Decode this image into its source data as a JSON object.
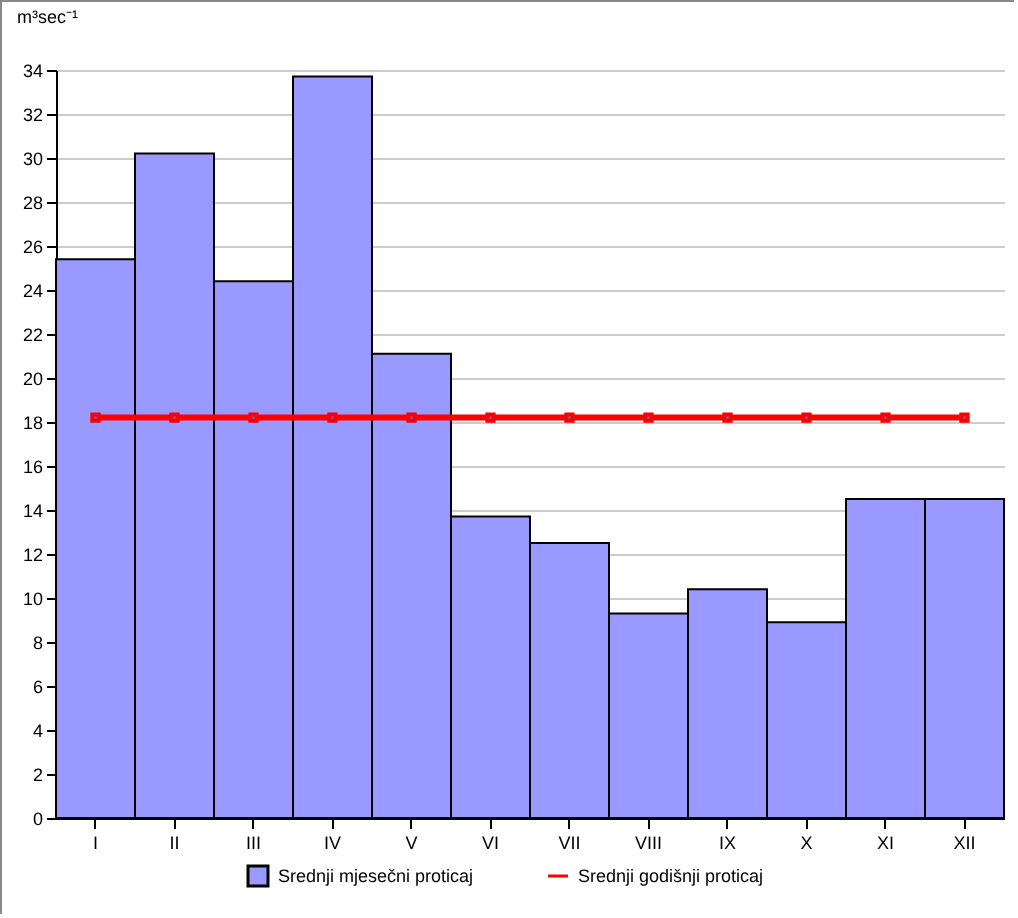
{
  "chart_data": {
    "type": "bar",
    "ylabel": "m³sec⁻¹",
    "categories": [
      "I",
      "II",
      "III",
      "IV",
      "V",
      "VI",
      "VII",
      "VIII",
      "IX",
      "X",
      "XI",
      "XII"
    ],
    "series": [
      {
        "name": "Srednji mjesečni proticaj",
        "color": "#9999ff",
        "values": [
          25.4,
          30.2,
          24.4,
          33.7,
          21.1,
          13.7,
          12.5,
          9.3,
          10.4,
          8.9,
          14.5,
          14.5
        ]
      },
      {
        "name": "Srednji godišnji proticaj",
        "type": "line",
        "color": "#ff0000",
        "marker": "square",
        "values": [
          18.2,
          18.2,
          18.2,
          18.2,
          18.2,
          18.2,
          18.2,
          18.2,
          18.2,
          18.2,
          18.2,
          18.2
        ]
      }
    ],
    "ylim": [
      0,
      34
    ],
    "yticks": [
      0,
      2,
      4,
      6,
      8,
      10,
      12,
      14,
      16,
      18,
      20,
      22,
      24,
      26,
      28,
      30,
      32,
      34
    ],
    "grid": "y",
    "legend": "bottom"
  }
}
